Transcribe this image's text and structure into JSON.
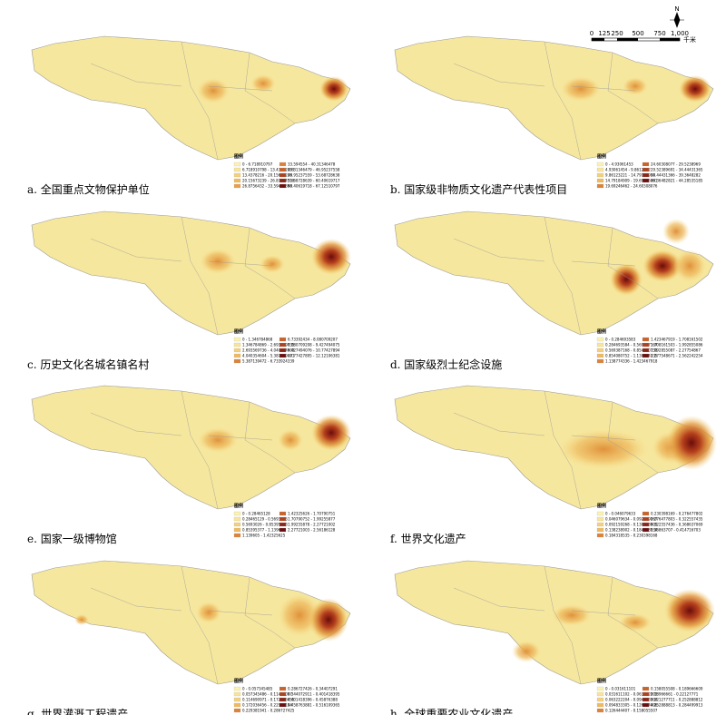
{
  "scale_bar": {
    "ticks": [
      "0",
      "125",
      "250",
      "500",
      "750",
      "1,000"
    ],
    "unit": "千米",
    "north": "N"
  },
  "panels": [
    {
      "caption": "a. 全国重点文物保护单位",
      "legend_title": "图例",
      "legend": [
        "0 - 6.718910797",
        "6.718910798 - 13.43782159",
        "13.4378216 - 20.15673238",
        "20.15673239 - 26.87564318",
        "26.8756432 - 33.59455398",
        "33.594554 - 40.31346478",
        "40.31346479 - 46.95237558",
        "46.95237559 - 53.68728638",
        "53.68728639 - 60.40619717",
        "60.40619718 - 67.12510797"
      ]
    },
    {
      "caption": "b. 国家级非物质文化遗产代表性项目",
      "legend_title": "图例",
      "legend": [
        "0 - 4.93061453",
        "4.93061454 - 9.8612322",
        "9.86123221 - 14.79184908",
        "14.79184909 - 19.69246461",
        "19.69246462 - 24.60308076",
        "24.60308077 - 29.5238969",
        "29.52389691 - 34.44431365",
        "34.44431366 - 39.3648282",
        "39.36482821 - 44.28535185"
      ]
    },
    {
      "caption": "c. 历史文化名城名镇名村",
      "legend_title": "图例",
      "legend": [
        "0 - 1.346784868",
        "1.346784869 - 2.693569735",
        "2.693569736 - 4.040354603",
        "4.040354604 - 5.387139471",
        "5.387139472 - 6.733924339",
        "6.73392434 - 8.080709207",
        "8.080709208 - 9.427494075",
        "9.427494076 - 10.77427894",
        "10.77427895 - 12.12106381"
      ]
    },
    {
      "caption": "d. 国家级烈士纪念设施",
      "legend_title": "图例",
      "legend": [
        "0 - 0.284693583",
        "0.284693584 - 0.569387167",
        "0.569387168 - 0.854080751",
        "0.854080752 - 1.138774335",
        "1.138774336 - 1.423467918",
        "1.423467919 - 1.708161502",
        "1.708161503 - 1.992855086",
        "1.992855087 - 2.27754867",
        "2.277548671 - 2.562242254"
      ]
    },
    {
      "caption": "e. 国家一级博物馆",
      "legend_title": "图例",
      "legend": [
        "0 - 0.28465128",
        "0.28465129 - 0.5693025",
        "0.5693026 - 0.85395376",
        "0.85395377 - 1.139605",
        "1.139605 - 1.42325625",
        "1.42325626 - 1.70790751",
        "1.70790752 - 1.99255877",
        "1.99255878 - 2.27721002",
        "2.27721003 - 2.56186128"
      ]
    },
    {
      "caption": "f. 世界文化遗产",
      "legend_title": "图例",
      "legend": [
        "0 - 0.046079633",
        "0.046079634 - 0.092159267",
        "0.092159268 - 0.138238901",
        "0.138238902 - 0.184318534",
        "0.184318535 - 0.230398168",
        "0.230398169 - 0.276477802",
        "0.276477803 - 0.322557435",
        "0.322557436 - 0.368637069",
        "0.36863707 - 0.414716703"
      ]
    },
    {
      "caption": "g. 世界灌溉工程遗产",
      "legend_title": "图例",
      "legend": [
        "0 - 0.057345485",
        "0.057345486 - 0.11469097",
        "0.114690971 - 0.172036455",
        "0.172036456 - 0.22938194",
        "0.229381941 - 0.286727425",
        "0.286727426 - 0.34407291",
        "0.344072911 - 0.401418395",
        "0.401418396 - 0.45876388",
        "0.458763881 - 0.516109365"
      ]
    },
    {
      "caption": "h. 全球重要农业文化遗产",
      "legend_title": "图例",
      "legend": [
        "0 - 0.031611101",
        "0.031611102 - 0.063222203",
        "0.063222204 - 0.094833304",
        "0.094833305 - 0.126444406",
        "0.126444407 - 0.158055507",
        "0.158055508 - 0.189666609",
        "0.18966661 - 0.22127771",
        "0.221277711 - 0.252888812",
        "0.252888813 - 0.284499913"
      ]
    }
  ]
}
